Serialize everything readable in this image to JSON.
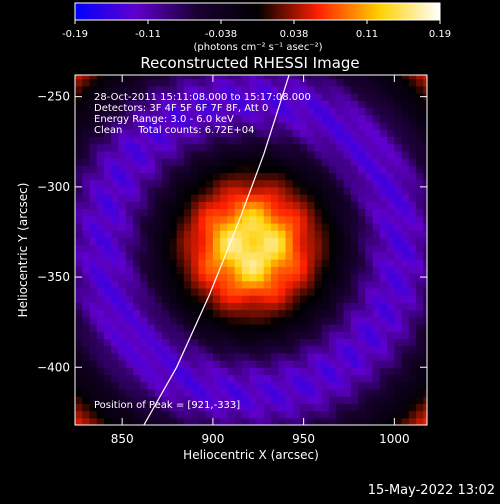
{
  "chart_data": {
    "type": "heatmap",
    "title": "Reconstructed RHESSI Image",
    "xlabel": "Heliocentric X (arcsec)",
    "ylabel": "Heliocentric Y (arcsec)",
    "xlim": [
      824,
      1018
    ],
    "ylim": [
      -432,
      -238
    ],
    "x_ticks": [
      850,
      900,
      950,
      1000
    ],
    "y_ticks": [
      -250,
      -300,
      -350,
      -400
    ],
    "colorbar": {
      "min": -0.19,
      "max": 0.19,
      "ticks": [
        "-0.19",
        "-0.11",
        "-0.038",
        "0.038",
        "0.11",
        "0.19"
      ],
      "unit_label": "(photons cm⁻² s⁻¹ asec⁻²)",
      "colormap": [
        "#0000ff",
        "#6000cc",
        "#1a0033",
        "#000000",
        "#ff2000",
        "#ffd000",
        "#ffffff"
      ]
    },
    "annotations": [
      "28-Oct-2011 15:11:08.000 to 15:17:08.000",
      "Detectors: 3F 4F 5F 6F 7F 8F, Att 0",
      "Energy Range: 3.0 - 6.0 keV",
      "Clean     Total counts: 6.72E+04"
    ],
    "peak_label": "Position of Peak = [921,-333]",
    "peak": {
      "x": 921,
      "y": -333,
      "value": 0.19
    },
    "ring": {
      "center_x": 921,
      "center_y": -333,
      "radius": 82,
      "width": 28,
      "value": -0.15
    },
    "limb_curve": [
      {
        "x": 862,
        "y": -432
      },
      {
        "x": 880,
        "y": -400
      },
      {
        "x": 898,
        "y": -360
      },
      {
        "x": 914,
        "y": -320
      },
      {
        "x": 928,
        "y": -282
      },
      {
        "x": 942,
        "y": -238
      }
    ],
    "timestamp": "15-May-2022 13:02"
  }
}
